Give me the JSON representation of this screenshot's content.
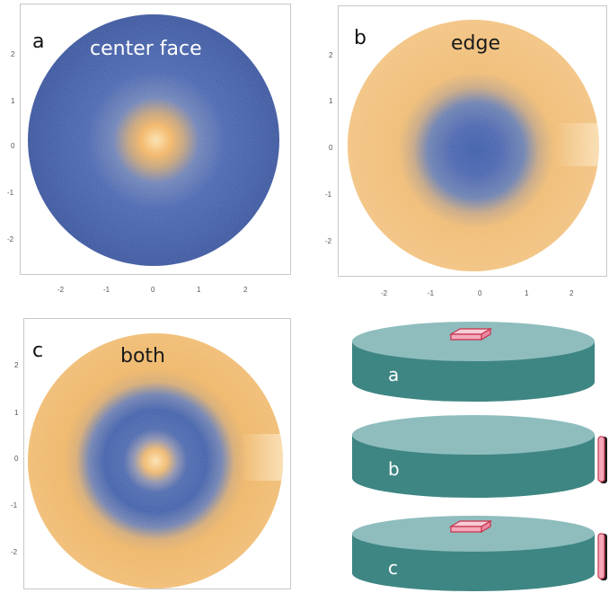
{
  "panels": [
    {
      "id": "a",
      "letter": "a",
      "title": "center face",
      "title_color": "#ffffff",
      "x_ticks": [
        "-2",
        "-1",
        "0",
        "1",
        "2"
      ],
      "y_ticks": [
        "2",
        "1",
        "0",
        "-1",
        "-2"
      ]
    },
    {
      "id": "b",
      "letter": "b",
      "title": "edge",
      "title_color": "#1a1a1a",
      "x_ticks": [
        "-2",
        "-1",
        "0",
        "1",
        "2"
      ],
      "y_ticks": [
        "2",
        "1",
        "0",
        "-1",
        "-2"
      ]
    },
    {
      "id": "c",
      "letter": "c",
      "title": "both",
      "title_color": "#1a1a1a",
      "y_ticks": [
        "2",
        "1",
        "0",
        "-1",
        "-2"
      ]
    }
  ],
  "disks": [
    {
      "label": "a",
      "sensor": "top"
    },
    {
      "label": "b",
      "sensor": "edge"
    },
    {
      "label": "c",
      "sensor": "both"
    }
  ],
  "colors": {
    "blue": "#3a5aa6",
    "orange": "#f0ba6a",
    "disk_side": "#3e8683",
    "disk_top": "#8fbdbe",
    "sensor_pink": "#f4a9bc",
    "sensor_edge": "#c8324a"
  }
}
